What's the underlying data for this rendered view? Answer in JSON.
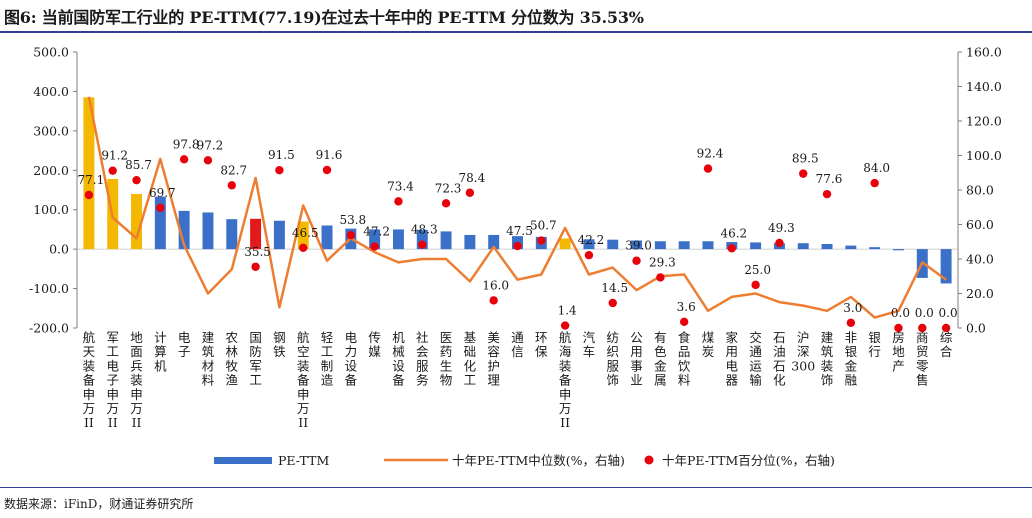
{
  "title": "图6: 当前国防军工行业的 PE-TTM(77.19)在过去十年中的 PE-TTM 分位数为 35.53%",
  "source": "数据来源：iFinD，财通证券研究所",
  "colors": {
    "pe_bar": "#3A70C8",
    "pe_bar_highlight": "#F5B800",
    "pe_bar_defense": "#E31A1C",
    "median_line": "#ED7D31",
    "percentile_dot": "#E8000B"
  },
  "chart_data": {
    "type": "bar",
    "categories": [
      "航天装备申万II",
      "军工电子申万II",
      "地面兵装申万II",
      "计算机",
      "电子",
      "建筑材料",
      "农林牧渔",
      "国防军工",
      "钢铁",
      "航空装备申万II",
      "轻工制造",
      "电力设备",
      "传媒",
      "机械设备",
      "社会服务",
      "医药生物",
      "基础化工",
      "美容护理",
      "通信",
      "环保",
      "航海装备申万II",
      "汽车",
      "纺织服饰",
      "公用事业",
      "有色金属",
      "食品饮料",
      "煤炭",
      "家用电器",
      "交通运输",
      "石油石化",
      "沪深300",
      "建筑装饰",
      "非银金融",
      "银行",
      "房地产",
      "商贸零售",
      "综合"
    ],
    "highlight_categories": [
      "航天装备申万II",
      "军工电子申万II",
      "地面兵装申万II",
      "航空装备申万II",
      "航海装备申万II"
    ],
    "defense_category": "国防军工",
    "series": [
      {
        "name": "PE-TTM",
        "type": "bar",
        "axis": "left",
        "values": [
          385,
          178,
          140,
          133,
          97,
          93,
          76,
          77,
          72,
          70,
          60,
          52,
          50,
          50,
          49,
          45,
          36,
          36,
          33,
          31,
          27,
          25,
          24,
          22,
          20,
          20,
          20,
          18,
          17,
          15,
          15,
          13,
          9,
          5,
          -3,
          -73,
          -87
        ]
      },
      {
        "name": "十年PE-TTM中位数(%，右轴)",
        "type": "line",
        "axis": "right",
        "values": [
          134,
          64,
          52,
          98,
          48,
          20,
          34,
          87,
          12,
          71,
          39,
          52,
          44,
          38,
          40,
          40,
          27,
          47,
          28,
          31,
          58,
          31,
          35,
          22,
          30,
          31,
          10,
          18,
          20,
          15,
          13,
          10,
          18,
          6,
          10,
          38,
          28
        ]
      },
      {
        "name": "十年PE-TTM百分位(%，右轴)",
        "type": "scatter",
        "axis": "right",
        "values": [
          77.1,
          91.2,
          85.7,
          69.7,
          97.8,
          97.2,
          82.7,
          35.5,
          91.5,
          46.5,
          91.6,
          53.8,
          47.2,
          73.4,
          48.3,
          72.3,
          78.4,
          16.0,
          47.5,
          50.7,
          1.4,
          42.2,
          14.5,
          39.0,
          29.3,
          3.6,
          92.4,
          46.2,
          25.0,
          49.3,
          89.5,
          77.6,
          3.0,
          84.0,
          0.0,
          0.0,
          0.0
        ],
        "labels": [
          "77.1",
          "91.2",
          "85.7",
          "69.7",
          "97.8",
          "97.2",
          "82.7",
          "35.5",
          "91.5",
          "46.5",
          "91.6",
          "53.8",
          "47.2",
          "73.4",
          "48.3",
          "72.3",
          "78.4",
          "16.0",
          "47.5",
          "50.7",
          "1.4",
          "42.2",
          "14.5",
          "39.0",
          "29.3",
          "3.6",
          "92.4",
          "46.2",
          "25.0",
          "49.3",
          "89.5",
          "77.6",
          "3.0",
          "84.0",
          "0.0",
          "0.0",
          "0.0"
        ]
      }
    ],
    "left_axis": {
      "ylim": [
        -200,
        500
      ],
      "ticks": [
        "-200.0",
        "-100.0",
        "0.0",
        "100.0",
        "200.0",
        "300.0",
        "400.0",
        "500.0"
      ]
    },
    "right_axis": {
      "ylim": [
        0,
        160
      ],
      "ticks": [
        "0.0",
        "20.0",
        "40.0",
        "60.0",
        "80.0",
        "100.0",
        "120.0",
        "140.0",
        "160.0"
      ]
    },
    "legend": {
      "placement": "bottom",
      "entries": [
        "PE-TTM",
        "十年PE-TTM中位数(%，右轴)",
        "十年PE-TTM百分位(%，右轴)"
      ]
    },
    "grid": false
  }
}
